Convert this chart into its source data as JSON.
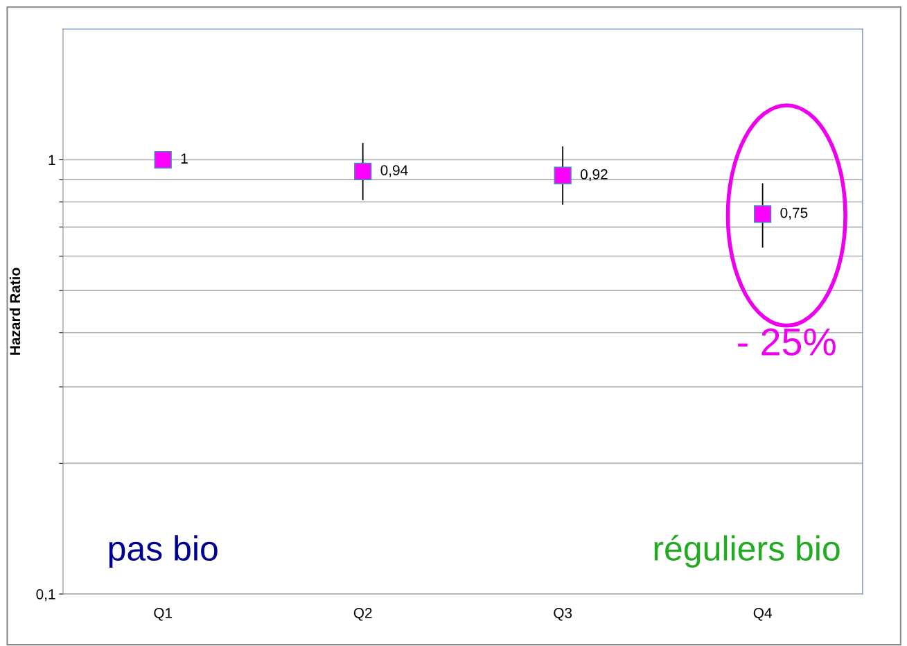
{
  "chart_data": {
    "type": "scatter",
    "ylabel": "Hazard Ratio",
    "categories": [
      "Q1",
      "Q2",
      "Q3",
      "Q4"
    ],
    "series": [
      {
        "color": "#ff00ff",
        "values": [
          1,
          0.94,
          0.92,
          0.75
        ],
        "errors": [
          null,
          [
            0.81,
            1.09
          ],
          [
            0.79,
            1.07
          ],
          [
            0.63,
            0.88
          ]
        ],
        "value_labels": [
          "1",
          "0,94",
          "0,92",
          "0,75"
        ]
      }
    ],
    "log": true,
    "ylim": [
      0.1,
      2
    ],
    "yticks": [
      {
        "value": 0.1,
        "label": "0,1"
      },
      {
        "value": 0.2,
        "label": null
      },
      {
        "value": 0.3,
        "label": null
      },
      {
        "value": 0.4,
        "label": null
      },
      {
        "value": 0.5,
        "label": null
      },
      {
        "value": 0.6,
        "label": null
      },
      {
        "value": 0.7,
        "label": null
      },
      {
        "value": 0.8,
        "label": null
      },
      {
        "value": 0.9,
        "label": null
      },
      1
    ],
    "grid": "y",
    "marker": "square",
    "annotations": [
      "pas bio",
      "réguliers bio",
      "- 25%"
    ]
  }
}
